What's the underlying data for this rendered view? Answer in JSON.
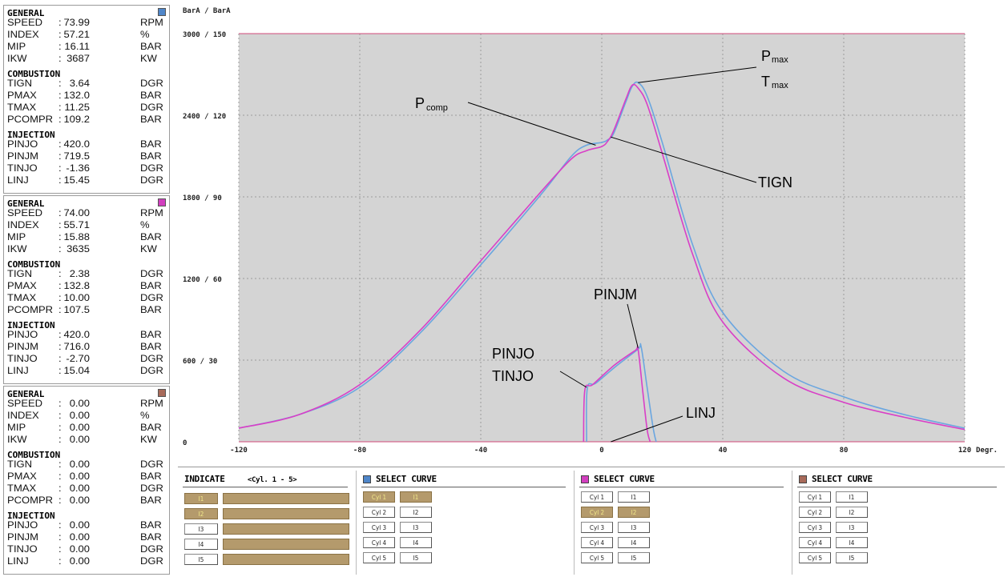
{
  "colors": {
    "cyl1": "#4f86c9",
    "cyl2": "#d23fbf",
    "cyl3": "#a86a5a",
    "curve_a": "#6aa6e0",
    "curve_b": "#d93fc7",
    "plot_bg": "#d4d4d4",
    "button_on": "#b49a6c"
  },
  "panels": [
    {
      "swatch_color": "#4f86c9",
      "general_title": "GENERAL",
      "general": [
        {
          "label": "SPEED",
          "value": "73.99",
          "unit": "RPM"
        },
        {
          "label": "INDEX",
          "value": "57.21",
          "unit": "%"
        },
        {
          "label": "MIP",
          "value": "16.11",
          "unit": "BAR"
        },
        {
          "label": "IKW",
          "value": "3687",
          "unit": "KW"
        }
      ],
      "combustion_title": "COMBUSTION",
      "combustion": [
        {
          "label": "TIGN",
          "value": "3.64",
          "unit": "DGR"
        },
        {
          "label": "PMAX",
          "value": "132.0",
          "unit": "BAR"
        },
        {
          "label": "TMAX",
          "value": "11.25",
          "unit": "DGR"
        },
        {
          "label": "PCOMPR",
          "value": "109.2",
          "unit": "BAR"
        }
      ],
      "injection_title": "INJECTION",
      "injection": [
        {
          "label": "PINJO",
          "value": "420.0",
          "unit": "BAR"
        },
        {
          "label": "PINJM",
          "value": "719.5",
          "unit": "BAR"
        },
        {
          "label": "TINJO",
          "value": "-1.36",
          "unit": "DGR"
        },
        {
          "label": "LINJ",
          "value": "15.45",
          "unit": "DGR"
        }
      ]
    },
    {
      "swatch_color": "#d23fbf",
      "general_title": "GENERAL",
      "general": [
        {
          "label": "SPEED",
          "value": "74.00",
          "unit": "RPM"
        },
        {
          "label": "INDEX",
          "value": "55.71",
          "unit": "%"
        },
        {
          "label": "MIP",
          "value": "15.88",
          "unit": "BAR"
        },
        {
          "label": "IKW",
          "value": "3635",
          "unit": "KW"
        }
      ],
      "combustion_title": "COMBUSTION",
      "combustion": [
        {
          "label": "TIGN",
          "value": "2.38",
          "unit": "DGR"
        },
        {
          "label": "PMAX",
          "value": "132.8",
          "unit": "BAR"
        },
        {
          "label": "TMAX",
          "value": "10.00",
          "unit": "DGR"
        },
        {
          "label": "PCOMPR",
          "value": "107.5",
          "unit": "BAR"
        }
      ],
      "injection_title": "INJECTION",
      "injection": [
        {
          "label": "PINJO",
          "value": "420.0",
          "unit": "BAR"
        },
        {
          "label": "PINJM",
          "value": "716.0",
          "unit": "BAR"
        },
        {
          "label": "TINJO",
          "value": "-2.70",
          "unit": "DGR"
        },
        {
          "label": "LINJ",
          "value": "15.04",
          "unit": "DGR"
        }
      ]
    },
    {
      "swatch_color": "#a86a5a",
      "general_title": "GENERAL",
      "general": [
        {
          "label": "SPEED",
          "value": "0.00",
          "unit": "RPM"
        },
        {
          "label": "INDEX",
          "value": "0.00",
          "unit": "%"
        },
        {
          "label": "MIP",
          "value": "0.00",
          "unit": "BAR"
        },
        {
          "label": "IKW",
          "value": "0.00",
          "unit": "KW"
        }
      ],
      "combustion_title": "COMBUSTION",
      "combustion": [
        {
          "label": "TIGN",
          "value": "0.00",
          "unit": "DGR"
        },
        {
          "label": "PMAX",
          "value": "0.00",
          "unit": "BAR"
        },
        {
          "label": "TMAX",
          "value": "0.00",
          "unit": "DGR"
        },
        {
          "label": "PCOMPR",
          "value": "0.00",
          "unit": "BAR"
        }
      ],
      "injection_title": "INJECTION",
      "injection": [
        {
          "label": "PINJO",
          "value": "0.00",
          "unit": "BAR"
        },
        {
          "label": "PINJM",
          "value": "0.00",
          "unit": "BAR"
        },
        {
          "label": "TINJO",
          "value": "0.00",
          "unit": "DGR"
        },
        {
          "label": "LINJ",
          "value": "0.00",
          "unit": "DGR"
        }
      ]
    }
  ],
  "chart_data": {
    "type": "line",
    "ylabel": "BarA / BarA",
    "xlabel": "Degr.",
    "xlim": [
      -120,
      120
    ],
    "ylim": [
      0,
      3000
    ],
    "x_ticks": [
      "-120",
      "-80",
      "-40",
      "0",
      "40",
      "80",
      "120"
    ],
    "y_ticks": [
      "0",
      "600 / 30",
      "1200 / 60",
      "1800 / 90",
      "2400 / 120",
      "3000 / 150"
    ],
    "grid": true,
    "annotations": [
      "P",
      "max",
      "T",
      "max",
      "P",
      "comp",
      "TIGN",
      "PINJM",
      "PINJO",
      "TINJO",
      "LINJ"
    ],
    "series": [
      {
        "color": "#6aa6e0",
        "pressure": [
          [
            -120,
            100
          ],
          [
            -100,
            200
          ],
          [
            -80,
            400
          ],
          [
            -60,
            800
          ],
          [
            -40,
            1300
          ],
          [
            -20,
            1820
          ],
          [
            -10,
            2100
          ],
          [
            -5,
            2180
          ],
          [
            0,
            2200
          ],
          [
            2,
            2220
          ],
          [
            4,
            2270
          ],
          [
            8,
            2500
          ],
          [
            10,
            2610
          ],
          [
            12,
            2640
          ],
          [
            15,
            2540
          ],
          [
            20,
            2200
          ],
          [
            30,
            1450
          ],
          [
            40,
            950
          ],
          [
            60,
            520
          ],
          [
            80,
            330
          ],
          [
            100,
            200
          ],
          [
            120,
            100
          ]
        ],
        "injection": [
          [
            -5,
            0
          ],
          [
            -4.8,
            390
          ],
          [
            -2,
            430
          ],
          [
            5,
            560
          ],
          [
            12,
            680
          ],
          [
            13,
            700
          ],
          [
            15,
            400
          ],
          [
            17,
            100
          ],
          [
            18,
            0
          ]
        ]
      },
      {
        "color": "#d93fc7",
        "pressure": [
          [
            -120,
            100
          ],
          [
            -100,
            200
          ],
          [
            -80,
            420
          ],
          [
            -60,
            820
          ],
          [
            -40,
            1330
          ],
          [
            -20,
            1840
          ],
          [
            -10,
            2080
          ],
          [
            -5,
            2140
          ],
          [
            0,
            2170
          ],
          [
            2,
            2210
          ],
          [
            4,
            2290
          ],
          [
            8,
            2520
          ],
          [
            10,
            2620
          ],
          [
            12,
            2600
          ],
          [
            15,
            2480
          ],
          [
            20,
            2120
          ],
          [
            30,
            1380
          ],
          [
            40,
            880
          ],
          [
            60,
            470
          ],
          [
            80,
            290
          ],
          [
            100,
            180
          ],
          [
            120,
            90
          ]
        ],
        "injection": [
          [
            -6,
            0
          ],
          [
            -5.6,
            380
          ],
          [
            -3,
            420
          ],
          [
            4,
            560
          ],
          [
            11,
            670
          ],
          [
            12,
            680
          ],
          [
            13.5,
            380
          ],
          [
            15,
            90
          ],
          [
            16,
            0
          ]
        ]
      }
    ]
  },
  "indicate": {
    "title": "INDICATE",
    "range": "<Cyl. 1 - 5>",
    "buttons": [
      "I1",
      "I2",
      "I3",
      "I4",
      "I5"
    ]
  },
  "select_curves": [
    {
      "title": "SELECT CURVE",
      "swatch": "#4f86c9",
      "cyl": [
        "Cyl 1",
        "Cyl 2",
        "Cyl 3",
        "Cyl 4",
        "Cyl 5"
      ],
      "i": [
        "I1",
        "I2",
        "I3",
        "I4",
        "I5"
      ]
    },
    {
      "title": "SELECT CURVE",
      "swatch": "#d23fbf",
      "cyl": [
        "Cyl 1",
        "Cyl 2",
        "Cyl 3",
        "Cyl 4",
        "Cyl 5"
      ],
      "i": [
        "I1",
        "I2",
        "I3",
        "I4",
        "I5"
      ]
    },
    {
      "title": "SELECT CURVE",
      "swatch": "#a86a5a",
      "cyl": [
        "Cyl 1",
        "Cyl 2",
        "Cyl 3",
        "Cyl 4",
        "Cyl 5"
      ],
      "i": [
        "I1",
        "I2",
        "I3",
        "I4",
        "I5"
      ]
    }
  ]
}
